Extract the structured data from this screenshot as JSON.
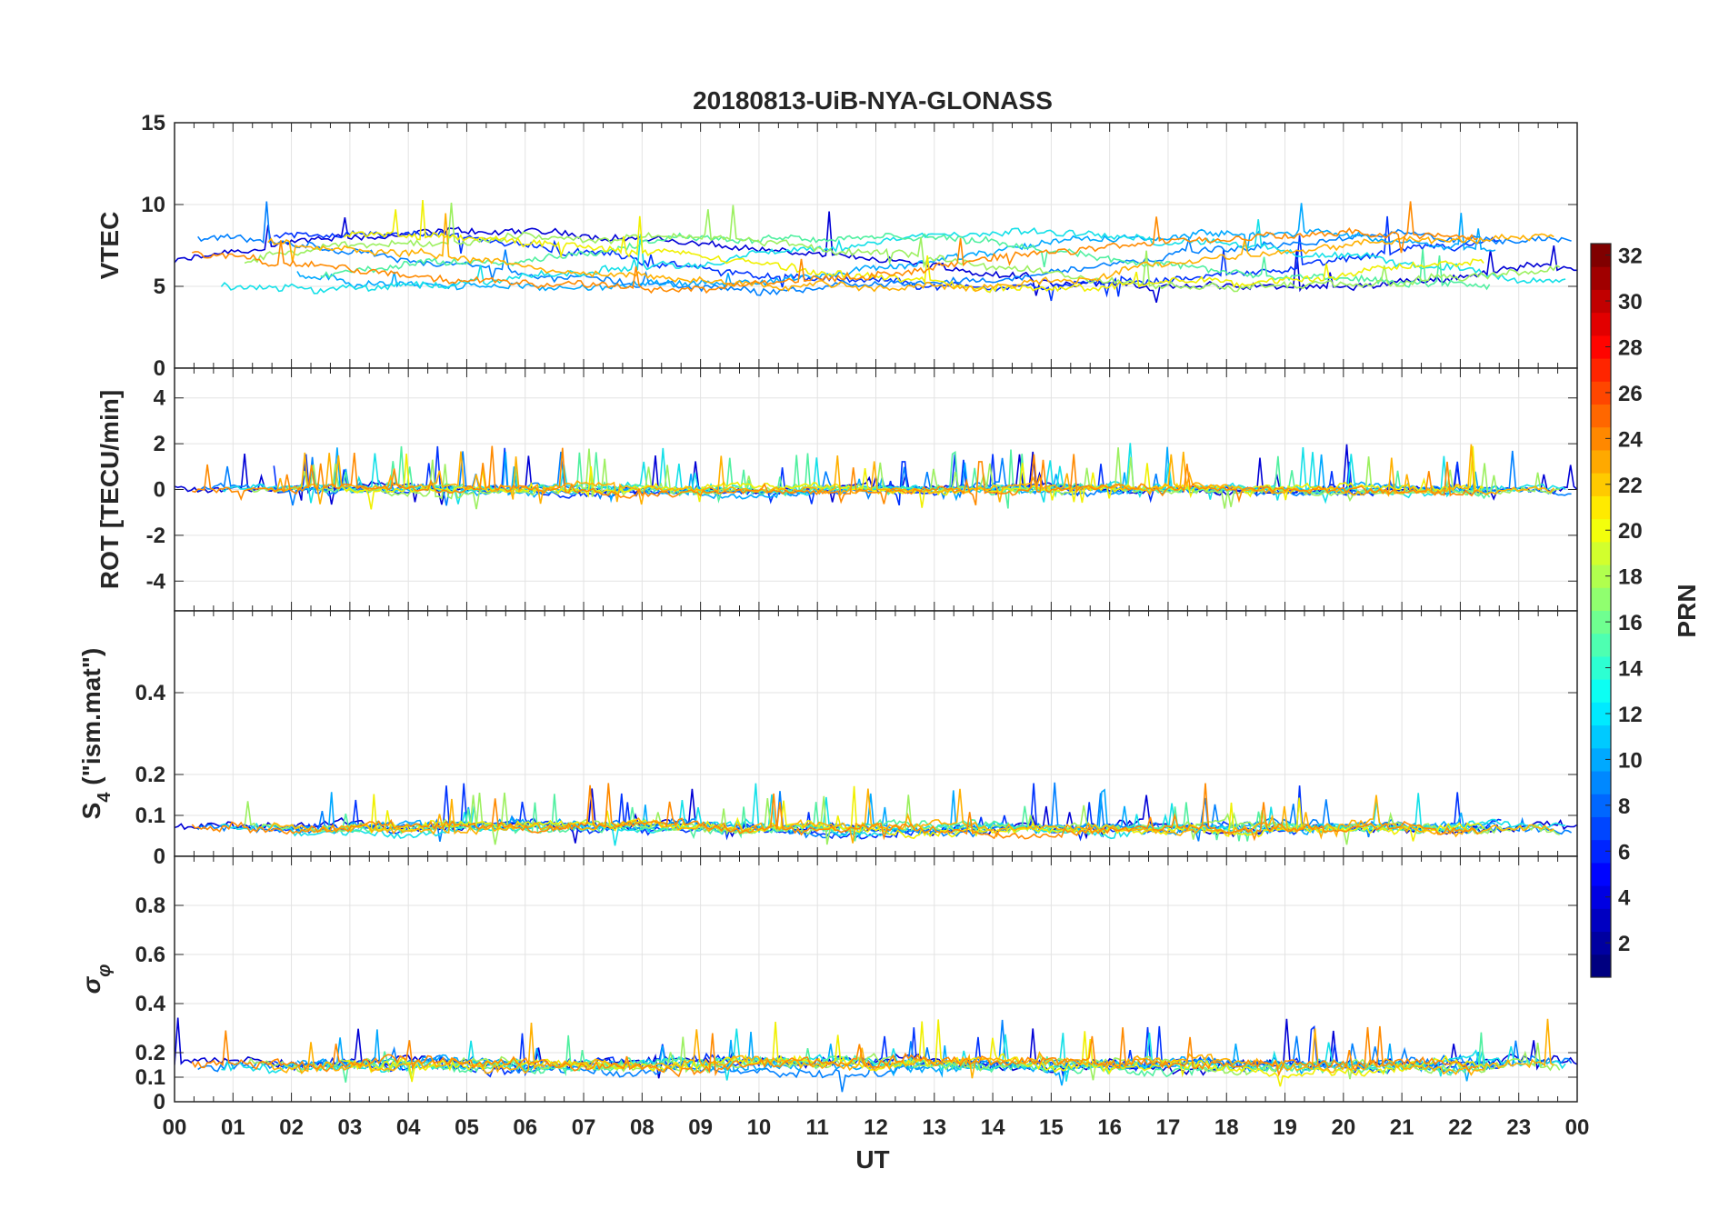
{
  "chart_data": {
    "type": "line",
    "title": "20180813-UiB-NYA-GLONASS",
    "xlabel": "UT",
    "x_range": [
      0,
      24
    ],
    "x_tick_labels": [
      "00",
      "01",
      "02",
      "03",
      "04",
      "05",
      "06",
      "07",
      "08",
      "09",
      "10",
      "11",
      "12",
      "13",
      "14",
      "15",
      "16",
      "17",
      "18",
      "19",
      "20",
      "21",
      "22",
      "23",
      "00"
    ],
    "panels": [
      {
        "id": "vtec",
        "ylabel": "VTEC",
        "ylim": [
          0,
          15
        ],
        "y_ticks": [
          0,
          5,
          10,
          15
        ],
        "y_tick_labels": [
          "0",
          "5",
          "10",
          "15"
        ],
        "base": 6.5,
        "amplitude": 1.6,
        "noise": 0.35,
        "spikes": 0.02
      },
      {
        "id": "rot",
        "ylabel": "ROT [TECU/min]",
        "ylim": [
          -5.3,
          5.3
        ],
        "y_ticks": [
          -4,
          -2,
          0,
          2,
          4
        ],
        "y_tick_labels": [
          "-4",
          "-2",
          "0",
          "2",
          "4"
        ],
        "base": 0.0,
        "amplitude": 0.0,
        "noise": 0.22,
        "spikes": 0.06
      },
      {
        "id": "s4",
        "ylabel": "S4 (\"ism.mat\")",
        "ylabel_main": "S",
        "ylabel_sub": "4",
        "ylabel_rest": " (\"ism.mat\")",
        "ylim": [
          0,
          0.6
        ],
        "y_ticks": [
          0,
          0.1,
          0.2,
          0.4
        ],
        "y_tick_labels": [
          "0",
          "0.1",
          "0.2",
          "0.4"
        ],
        "base": 0.07,
        "amplitude": 0.0,
        "noise": 0.015,
        "spikes": 0.04
      },
      {
        "id": "sigma_phi",
        "ylabel": "σφ",
        "ylabel_main": "σ",
        "ylabel_sub": "φ",
        "ylim": [
          0,
          1
        ],
        "y_ticks": [
          0,
          0.1,
          0.2,
          0.4,
          0.6,
          0.8
        ],
        "y_tick_labels": [
          "0",
          "0.1",
          "0.2",
          "0.4",
          "0.6",
          "0.8"
        ],
        "base": 0.15,
        "amplitude": 0.0,
        "noise": 0.03,
        "spikes": 0.03
      }
    ],
    "colorbar": {
      "label": "PRN",
      "range": [
        1,
        32
      ],
      "tick_labels": [
        "2",
        "4",
        "6",
        "8",
        "10",
        "12",
        "14",
        "16",
        "18",
        "20",
        "22",
        "24",
        "26",
        "28",
        "30",
        "32"
      ],
      "colormap": "jet"
    },
    "series": [
      {
        "prn": 2,
        "color": "#0000d6"
      },
      {
        "prn": 5,
        "color": "#0033ff"
      },
      {
        "prn": 8,
        "color": "#0080ff"
      },
      {
        "prn": 10,
        "color": "#00a8ff"
      },
      {
        "prn": 13,
        "color": "#14e0e8"
      },
      {
        "prn": 15,
        "color": "#50f0a0"
      },
      {
        "prn": 17,
        "color": "#9cf060"
      },
      {
        "prn": 20,
        "color": "#f0f000"
      },
      {
        "prn": 22,
        "color": "#ffb000"
      },
      {
        "prn": 23,
        "color": "#ff8a00"
      }
    ]
  }
}
